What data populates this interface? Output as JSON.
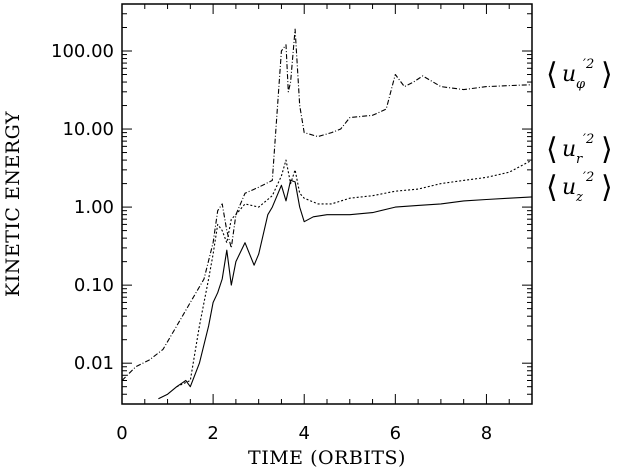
{
  "chart_data": {
    "type": "line",
    "title": "",
    "xlabel": "TIME (ORBITS)",
    "ylabel": "KINETIC ENERGY",
    "xlim": [
      0,
      9
    ],
    "ylim": [
      0.003,
      400
    ],
    "yscale": "log",
    "grid": false,
    "legend_position": "right",
    "x_ticks": [
      "0",
      "2",
      "4",
      "6",
      "8"
    ],
    "y_ticks": [
      "0.01",
      "0.10",
      "1.00",
      "10.00",
      "100.00"
    ],
    "series": [
      {
        "name": "⟨uφ′2⟩",
        "label_base": "u",
        "label_sub": "φ",
        "label_sup": "′2",
        "style": "dash-dot",
        "x": [
          0.0,
          0.3,
          0.6,
          0.9,
          1.2,
          1.5,
          1.8,
          2.0,
          2.1,
          2.2,
          2.3,
          2.4,
          2.5,
          2.7,
          3.0,
          3.3,
          3.5,
          3.6,
          3.65,
          3.7,
          3.8,
          3.9,
          4.0,
          4.3,
          4.6,
          4.8,
          5.0,
          5.5,
          5.8,
          6.0,
          6.2,
          6.4,
          6.6,
          7.0,
          7.5,
          8.0,
          8.5,
          9.0
        ],
        "y": [
          0.006,
          0.009,
          0.011,
          0.015,
          0.03,
          0.06,
          0.12,
          0.35,
          0.9,
          1.1,
          0.5,
          0.3,
          0.8,
          1.5,
          1.8,
          2.2,
          100,
          120,
          30,
          40,
          190,
          20,
          9,
          8,
          9,
          10,
          14,
          15,
          18,
          50,
          35,
          40,
          48,
          35,
          32,
          35,
          36,
          37
        ]
      },
      {
        "name": "⟨ur′2⟩",
        "label_base": "u",
        "label_sub": "r",
        "label_sup": "′2",
        "style": "dotted",
        "x": [
          1.2,
          1.5,
          1.7,
          1.9,
          2.0,
          2.1,
          2.2,
          2.3,
          2.4,
          2.5,
          2.7,
          3.0,
          3.3,
          3.5,
          3.6,
          3.7,
          3.8,
          3.9,
          4.0,
          4.3,
          4.6,
          5.0,
          5.5,
          6.0,
          6.5,
          7.0,
          7.5,
          8.0,
          8.5,
          9.0
        ],
        "y": [
          0.005,
          0.006,
          0.03,
          0.12,
          0.25,
          0.6,
          0.5,
          0.35,
          0.7,
          0.8,
          1.1,
          1.0,
          1.4,
          2.5,
          4.0,
          2.0,
          3.0,
          1.5,
          1.3,
          1.1,
          1.1,
          1.3,
          1.4,
          1.6,
          1.7,
          2.0,
          2.2,
          2.4,
          2.8,
          4.0
        ]
      },
      {
        "name": "⟨uz′2⟩",
        "label_base": "u",
        "label_sub": "z",
        "label_sup": "′2",
        "style": "solid",
        "x": [
          0.8,
          1.0,
          1.2,
          1.4,
          1.5,
          1.7,
          1.9,
          2.0,
          2.1,
          2.2,
          2.3,
          2.4,
          2.5,
          2.7,
          2.9,
          3.0,
          3.2,
          3.3,
          3.5,
          3.6,
          3.7,
          3.8,
          3.9,
          4.0,
          4.2,
          4.5,
          5.0,
          5.5,
          6.0,
          6.5,
          7.0,
          7.5,
          8.0,
          8.5,
          9.0
        ],
        "y": [
          0.0035,
          0.004,
          0.005,
          0.006,
          0.005,
          0.01,
          0.03,
          0.06,
          0.08,
          0.12,
          0.28,
          0.1,
          0.2,
          0.35,
          0.18,
          0.25,
          0.8,
          1.0,
          1.9,
          1.2,
          2.2,
          2.1,
          1.0,
          0.65,
          0.75,
          0.8,
          0.8,
          0.85,
          1.0,
          1.05,
          1.1,
          1.2,
          1.25,
          1.3,
          1.35
        ]
      }
    ]
  }
}
